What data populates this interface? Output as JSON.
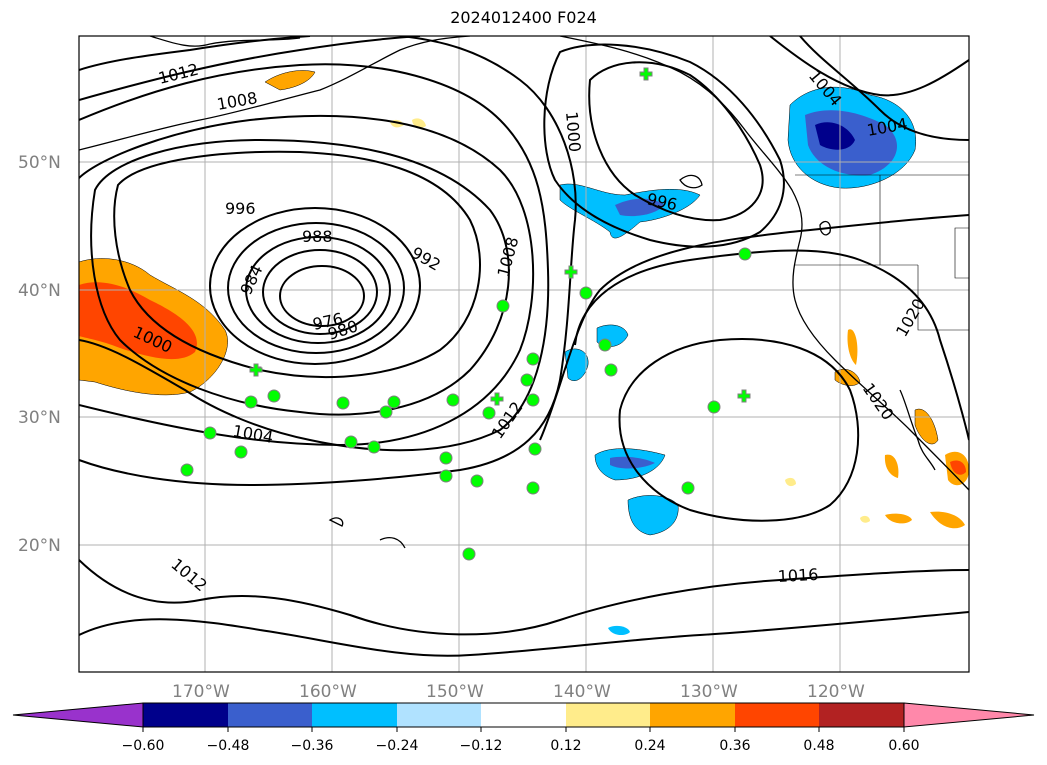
{
  "title": "2024012400 F024",
  "map": {
    "lat_labels": [
      "50°N",
      "40°N",
      "30°N",
      "20°N"
    ],
    "lon_labels": [
      "170°W",
      "160°W",
      "150°W",
      "140°W",
      "130°W",
      "120°W"
    ],
    "isobar_labels": [
      "1012",
      "1008",
      "996",
      "988",
      "984",
      "992",
      "976",
      "980",
      "1000",
      "1004",
      "1012",
      "1008",
      "1000",
      "996",
      "1004",
      "1004",
      "1020",
      "1020",
      "1016",
      "1012"
    ],
    "colors": {
      "contour": "#000000",
      "grid": "#b0b0b0",
      "station_marker": "#00ff00",
      "station_edge": "#808080"
    }
  },
  "colorbar": {
    "ticks": [
      "−0.60",
      "−0.48",
      "−0.36",
      "−0.24",
      "−0.12",
      "0.12",
      "0.24",
      "0.36",
      "0.48",
      "0.60"
    ],
    "colors": [
      "#9932cc",
      "#00008b",
      "#3a5fcd",
      "#00bfff",
      "#b0e2ff",
      "#ffffff",
      "#ffec8b",
      "#ffa500",
      "#ff4500",
      "#b22222",
      "#ff88aa"
    ]
  }
}
